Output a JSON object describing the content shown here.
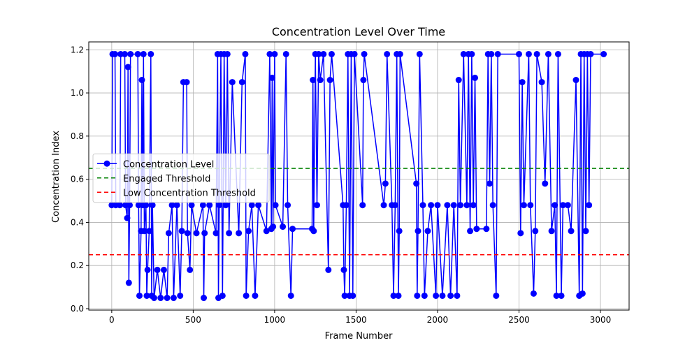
{
  "chart_data": {
    "type": "line",
    "title": "Concentration Level Over Time",
    "xlabel": "Frame Number",
    "ylabel": "Concentration Index",
    "x": [
      0,
      5,
      20,
      25,
      50,
      55,
      80,
      85,
      95,
      100,
      105,
      110,
      115,
      160,
      165,
      170,
      180,
      185,
      190,
      195,
      200,
      210,
      215,
      220,
      230,
      240,
      245,
      250,
      260,
      280,
      300,
      320,
      340,
      350,
      370,
      380,
      400,
      420,
      430,
      440,
      460,
      465,
      480,
      490,
      520,
      560,
      565,
      570,
      600,
      640,
      650,
      655,
      660,
      670,
      680,
      690,
      700,
      710,
      720,
      740,
      780,
      800,
      820,
      825,
      840,
      860,
      880,
      900,
      950,
      970,
      980,
      985,
      990,
      1000,
      1005,
      1050,
      1070,
      1080,
      1100,
      1110,
      1230,
      1235,
      1240,
      1250,
      1260,
      1270,
      1280,
      1300,
      1330,
      1340,
      1350,
      1420,
      1425,
      1430,
      1440,
      1450,
      1460,
      1470,
      1480,
      1490,
      1540,
      1545,
      1550,
      1670,
      1680,
      1690,
      1720,
      1730,
      1740,
      1750,
      1760,
      1765,
      1770,
      1870,
      1875,
      1880,
      1890,
      1910,
      1920,
      1940,
      1960,
      1990,
      2000,
      2030,
      2060,
      2080,
      2100,
      2120,
      2130,
      2140,
      2160,
      2180,
      2190,
      2200,
      2210,
      2220,
      2230,
      2240,
      2300,
      2310,
      2320,
      2330,
      2340,
      2360,
      2370,
      2500,
      2510,
      2520,
      2530,
      2560,
      2570,
      2590,
      2600,
      2610,
      2640,
      2660,
      2680,
      2700,
      2720,
      2730,
      2740,
      2760,
      2770,
      2800,
      2820,
      2850,
      2870,
      2880,
      2890,
      2900,
      2910,
      2920,
      2930,
      2940,
      3020
    ],
    "series": [
      {
        "name": "Concentration Level",
        "color": "#0000ff",
        "values": [
          0.48,
          1.18,
          1.18,
          0.48,
          0.48,
          1.18,
          1.18,
          0.48,
          0.42,
          1.12,
          0.12,
          0.48,
          1.18,
          1.18,
          0.48,
          0.06,
          0.36,
          1.06,
          0.48,
          1.18,
          0.36,
          0.48,
          0.06,
          0.18,
          0.36,
          1.18,
          0.06,
          0.48,
          0.05,
          0.18,
          0.05,
          0.18,
          0.05,
          0.35,
          0.48,
          0.05,
          0.48,
          0.06,
          0.36,
          1.05,
          1.05,
          0.35,
          0.18,
          0.48,
          0.35,
          0.48,
          0.05,
          0.35,
          0.48,
          0.35,
          1.18,
          0.05,
          0.48,
          1.18,
          0.06,
          1.18,
          0.48,
          1.18,
          0.35,
          1.05,
          0.35,
          1.05,
          1.18,
          0.06,
          0.36,
          0.48,
          0.06,
          0.48,
          0.36,
          1.18,
          0.37,
          1.07,
          0.38,
          1.18,
          0.48,
          0.38,
          1.18,
          0.48,
          0.06,
          0.37,
          0.37,
          1.06,
          0.36,
          1.18,
          0.48,
          1.18,
          1.06,
          1.18,
          0.18,
          1.06,
          1.18,
          0.48,
          0.18,
          0.06,
          0.48,
          1.18,
          0.06,
          1.18,
          0.06,
          1.18,
          0.48,
          1.06,
          1.18,
          0.48,
          0.58,
          1.18,
          0.48,
          0.06,
          0.48,
          1.18,
          0.06,
          0.36,
          1.18,
          0.58,
          0.06,
          0.36,
          1.18,
          0.48,
          0.06,
          0.36,
          0.48,
          0.06,
          0.48,
          0.06,
          0.48,
          0.06,
          0.48,
          0.06,
          1.06,
          0.48,
          1.18,
          0.48,
          1.18,
          0.36,
          1.18,
          0.48,
          1.07,
          0.37,
          0.37,
          1.18,
          0.58,
          1.18,
          0.48,
          0.06,
          1.18,
          1.18,
          0.35,
          1.05,
          0.48,
          1.18,
          0.48,
          0.07,
          0.36,
          1.18,
          1.05,
          0.58,
          1.18,
          0.36,
          0.48,
          0.06,
          1.18,
          0.06,
          0.48,
          0.48,
          0.36,
          1.06,
          0.06,
          1.18,
          0.07,
          1.18,
          0.36,
          1.18,
          0.48,
          1.18,
          1.18
        ]
      }
    ],
    "hlines": [
      {
        "name": "Engaged Threshold",
        "color": "#008000",
        "value": 0.65
      },
      {
        "name": "Low Concentration Threshold",
        "color": "#ff0000",
        "value": 0.25
      }
    ],
    "xlim": [
      -141,
      3176
    ],
    "ylim": [
      -0.0065,
      1.2365
    ],
    "xticks": [
      0,
      500,
      1000,
      1500,
      2000,
      2500,
      3000
    ],
    "yticks": [
      {
        "value": 0,
        "label": "0.0"
      },
      0.2,
      0.4,
      0.6,
      0.8,
      {
        "value": 1,
        "label": "1.0"
      },
      1.2
    ],
    "grid": true,
    "legend": "center left"
  }
}
